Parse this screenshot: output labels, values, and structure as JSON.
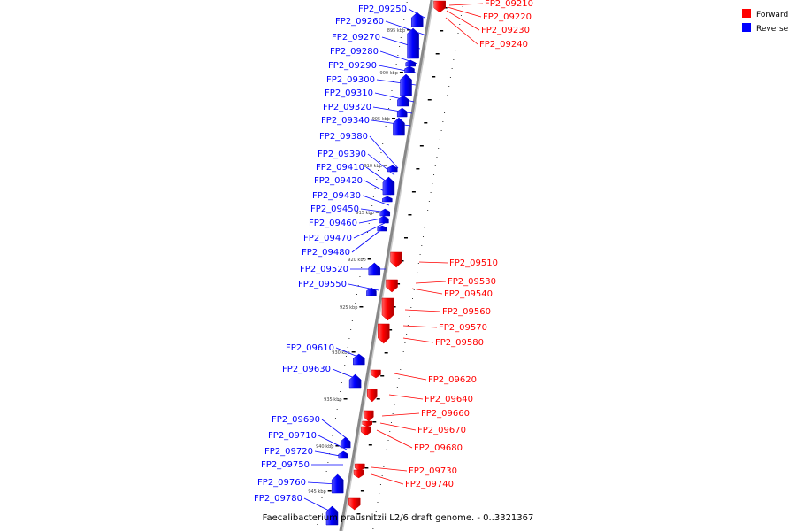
{
  "caption": "Faecalibacterium prausnitzii L2/6 draft genome. - 0..3321367",
  "legend": [
    {
      "label": "Forward",
      "color": "#ff0000"
    },
    {
      "label": "Reverse",
      "color": "#0000ff"
    }
  ],
  "tick_labels": [
    "895 kbp",
    "900 kbp",
    "905 kbp",
    "910 kbp",
    "915 kbp",
    "920 kbp",
    "925 kbp",
    "930 kbp",
    "935 kbp",
    "940 kbp",
    "945 kbp"
  ],
  "reverse_genes": [
    "FP2_09250",
    "FP2_09260",
    "FP2_09270",
    "FP2_09280",
    "FP2_09290",
    "FP2_09300",
    "FP2_09310",
    "FP2_09320",
    "FP2_09340",
    "FP2_09380",
    "FP2_09390",
    "FP2_09410",
    "FP2_09420",
    "FP2_09430",
    "FP2_09450",
    "FP2_09460",
    "FP2_09470",
    "FP2_09480",
    "FP2_09520",
    "FP2_09550",
    "FP2_09610",
    "FP2_09630",
    "FP2_09690",
    "FP2_09710",
    "FP2_09720",
    "FP2_09750",
    "FP2_09760",
    "FP2_09780"
  ],
  "forward_genes": [
    "FP2_09210",
    "FP2_09220",
    "FP2_09230",
    "FP2_09240",
    "FP2_09510",
    "FP2_09530",
    "FP2_09540",
    "FP2_09560",
    "FP2_09570",
    "FP2_09580",
    "FP2_09620",
    "FP2_09640",
    "FP2_09660",
    "FP2_09670",
    "FP2_09680",
    "FP2_09730",
    "FP2_09740"
  ],
  "colors": {
    "forward": "#ff0000",
    "reverse": "#0000ff",
    "backbone": "#888888"
  }
}
